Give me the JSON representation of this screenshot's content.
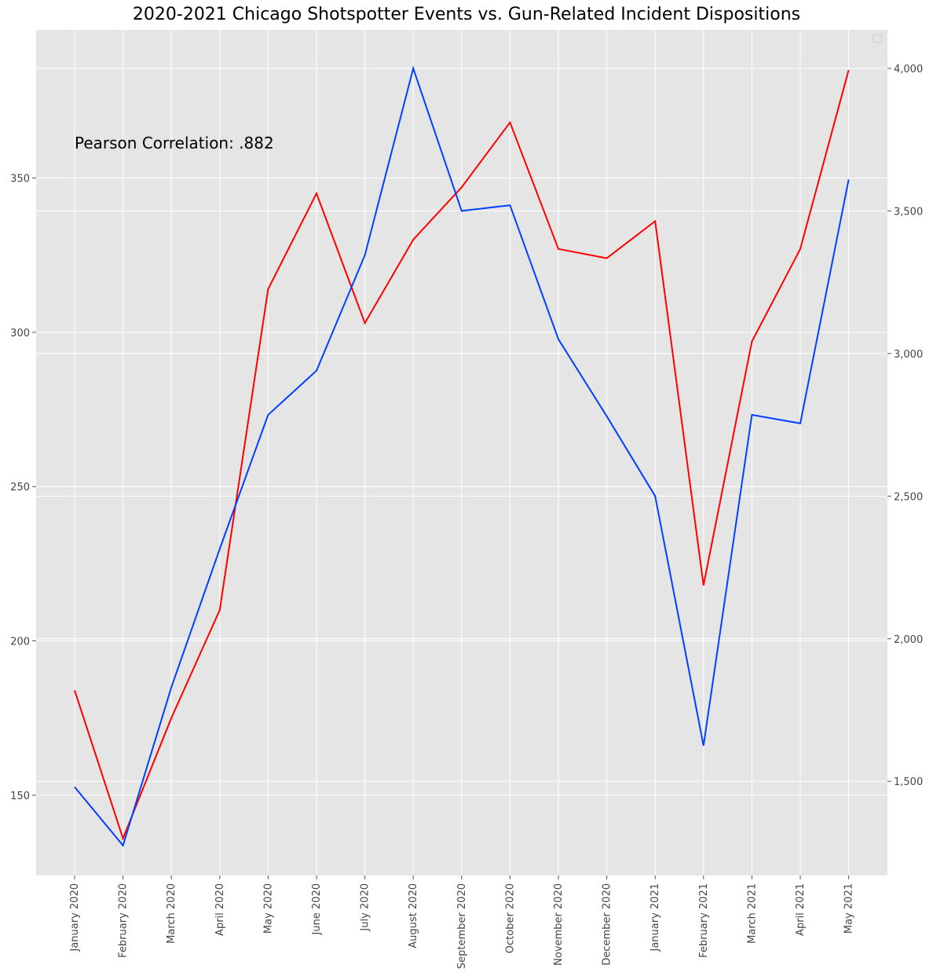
{
  "chart_data": {
    "type": "line",
    "title": "2020-2021 Chicago Shotspotter Events vs. Gun-Related Incident Dispositions",
    "annotation": "Pearson Correlation: .882",
    "categories": [
      "January 2020",
      "February 2020",
      "March 2020",
      "April 2020",
      "May 2020",
      "June 2020",
      "July 2020",
      "August 2020",
      "September 2020",
      "October 2020",
      "November 2020",
      "December 2020",
      "January 2021",
      "February 2021",
      "March 2021",
      "April 2021",
      "May 2021"
    ],
    "series": [
      {
        "axis": "left",
        "color": "#ff0000",
        "values": [
          184,
          136,
          175,
          210,
          314,
          345,
          303,
          330,
          347,
          368,
          327,
          324,
          336,
          218,
          297,
          327,
          385
        ]
      },
      {
        "axis": "right",
        "color": "#0040ff",
        "values": [
          1480,
          1275,
          1830,
          2315,
          2785,
          2940,
          3345,
          4000,
          3500,
          3520,
          3050,
          2780,
          2500,
          1625,
          2785,
          2755,
          3610
        ]
      }
    ],
    "ylim_left": [
      124,
      398
    ],
    "yticks_left": [
      150,
      200,
      250,
      300,
      350
    ],
    "ylim_right": [
      1170,
      4135
    ],
    "yticks_right": [
      1500,
      2000,
      2500,
      3000,
      3500,
      4000
    ],
    "ytick_labels_right": [
      "1,500",
      "2,000",
      "2,500",
      "3,000",
      "3,500",
      "4,000"
    ],
    "grid": true,
    "legend": "top-right (empty)",
    "background": "#e5e5e5",
    "grid_color": "#ffffff"
  }
}
